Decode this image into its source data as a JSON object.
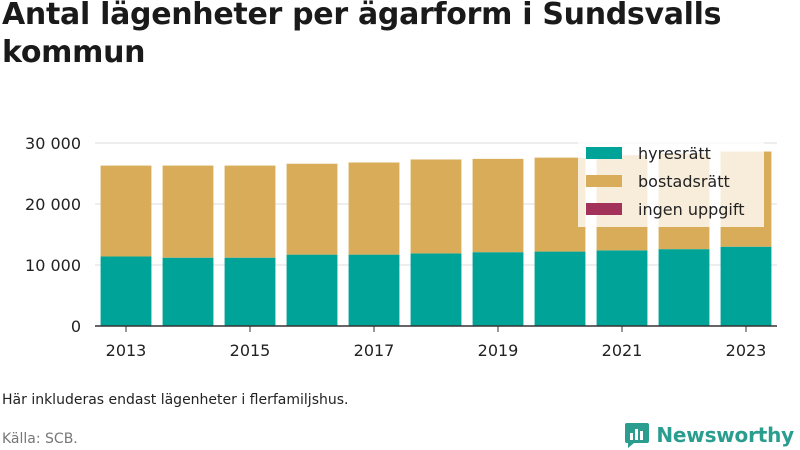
{
  "title": "Antal lägenheter per ägarform i Sundsvalls kommun",
  "note": "Här inkluderas endast lägenheter i flerfamiljshus.",
  "source": "Källa: SCB.",
  "brand": {
    "name": "Newsworthy",
    "icon": "newsworthy-logo-icon",
    "color": "#2a9d8f"
  },
  "colors": {
    "hyresratt": "#00a398",
    "bostadsratt": "#d9ac59",
    "ingen": "#a3325a",
    "grid": "#dcdcdc",
    "axis": "#333333"
  },
  "chart_data": {
    "type": "bar",
    "stacked": true,
    "x": [
      2013,
      2014,
      2015,
      2016,
      2017,
      2018,
      2019,
      2020,
      2021,
      2022,
      2023
    ],
    "x_tick_labels": [
      "2013",
      "2015",
      "2017",
      "2019",
      "2021",
      "2023"
    ],
    "y_tick_labels": [
      "0",
      "10 000",
      "20 000",
      "30 000"
    ],
    "ylim": [
      0,
      30000
    ],
    "grid": true,
    "legend_position": "top-right",
    "series": [
      {
        "name": "hyresrätt",
        "color": "#00a398",
        "values": [
          11400,
          11200,
          11200,
          11700,
          11700,
          11900,
          12100,
          12200,
          12400,
          12600,
          13000
        ]
      },
      {
        "name": "bostadsrätt",
        "color": "#d9ac59",
        "values": [
          14900,
          15100,
          15100,
          14900,
          15100,
          15400,
          15300,
          15400,
          15600,
          15700,
          15600
        ]
      },
      {
        "name": "ingen uppgift",
        "color": "#a3325a",
        "values": [
          0,
          0,
          0,
          0,
          0,
          0,
          0,
          0,
          0,
          0,
          0
        ]
      }
    ]
  }
}
